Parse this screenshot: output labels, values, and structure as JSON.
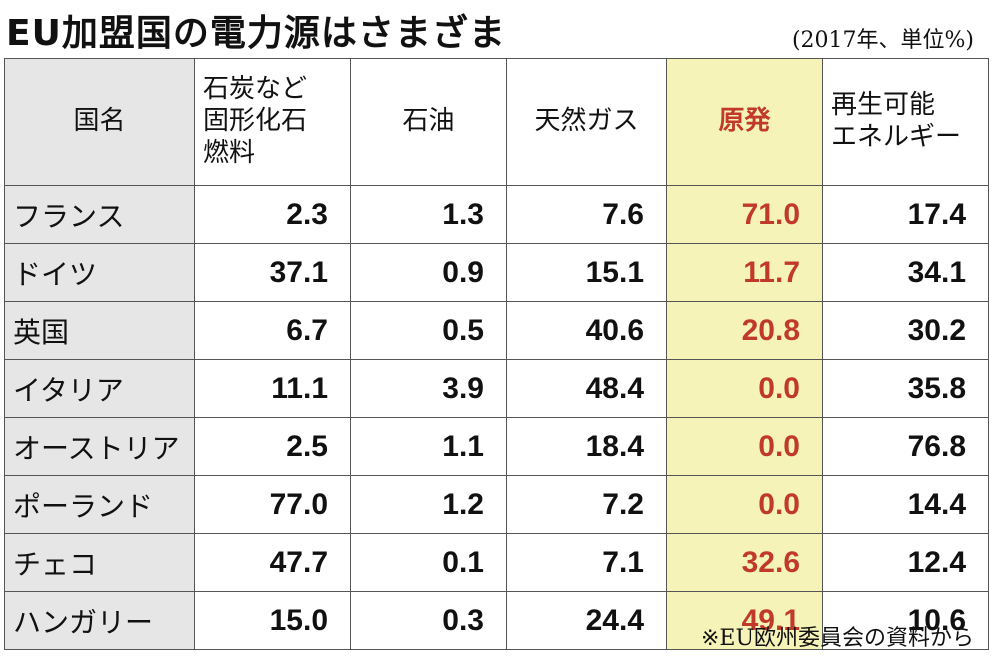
{
  "title": "EU加盟国の電力源はさまざま",
  "note": "(2017年、単位%)",
  "source": "※EU欧州委員会の資料から",
  "colors": {
    "highlight_bg": "#f6f3b8",
    "highlight_text": "#c0392b",
    "rowhead_bg": "#e6e6e6"
  },
  "chart_data": {
    "type": "table",
    "title": "EU加盟国の電力源はさまざま",
    "columns": [
      "国名",
      "石炭など固形化石燃料",
      "石油",
      "天然ガス",
      "原発",
      "再生可能エネルギー"
    ],
    "highlight_column": "原発",
    "rows": [
      {
        "country": "フランス",
        "values": [
          "2.3",
          "1.3",
          "7.6",
          "71.0",
          "17.4"
        ]
      },
      {
        "country": "ドイツ",
        "values": [
          "37.1",
          "0.9",
          "15.1",
          "11.7",
          "34.1"
        ]
      },
      {
        "country": "英国",
        "values": [
          "6.7",
          "0.5",
          "40.6",
          "20.8",
          "30.2"
        ]
      },
      {
        "country": "イタリア",
        "values": [
          "11.1",
          "3.9",
          "48.4",
          "0.0",
          "35.8"
        ]
      },
      {
        "country": "オーストリア",
        "values": [
          "2.5",
          "1.1",
          "18.4",
          "0.0",
          "76.8"
        ]
      },
      {
        "country": "ポーランド",
        "values": [
          "77.0",
          "1.2",
          "7.2",
          "0.0",
          "14.4"
        ]
      },
      {
        "country": "チェコ",
        "values": [
          "47.7",
          "0.1",
          "7.1",
          "32.6",
          "12.4"
        ]
      },
      {
        "country": "ハンガリー",
        "values": [
          "15.0",
          "0.3",
          "24.4",
          "49.1",
          "10.6"
        ]
      }
    ]
  },
  "header_lines": {
    "col0": [
      "国名"
    ],
    "col1": [
      "石炭など",
      "固形化石",
      "燃料"
    ],
    "col2": [
      "石油"
    ],
    "col3": [
      "天然ガス"
    ],
    "col4": [
      "原発"
    ],
    "col5": [
      "再生可能",
      "エネルギー"
    ]
  }
}
